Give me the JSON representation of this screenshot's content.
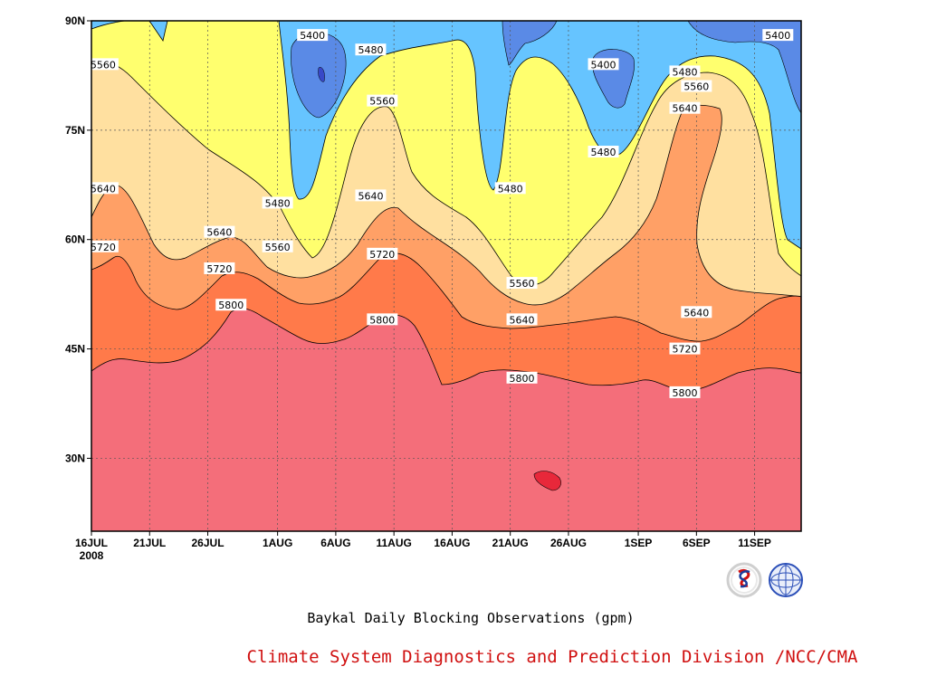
{
  "chart_data": {
    "type": "contour",
    "caption": "Baykal Daily Blocking Observations (gpm)",
    "credit": "Climate System Diagnostics and Prediction Division /NCC/CMA",
    "x_ticks": [
      "16JUL",
      "21JUL",
      "26JUL",
      "1AUG",
      "6AUG",
      "11AUG",
      "16AUG",
      "21AUG",
      "26AUG",
      "1SEP",
      "6SEP",
      "11SEP"
    ],
    "x_year": "2008",
    "x_range": [
      "16JUL2008",
      "15SEP2008"
    ],
    "y_ticks": [
      "30N",
      "45N",
      "60N",
      "75N",
      "90N"
    ],
    "y_range": [
      20,
      90
    ],
    "grid": true,
    "levels": [
      {
        "value": 5400,
        "color": "#5a8ae6"
      },
      {
        "value": 5480,
        "color": "#66c4ff"
      },
      {
        "value": 5560,
        "color": "#ffff6e"
      },
      {
        "value": 5640,
        "color": "#ffe0a0"
      },
      {
        "value": 5720,
        "color": "#ffa066"
      },
      {
        "value": 5800,
        "color": "#ff7a4a"
      },
      {
        "value": 5880,
        "color": "#f46e7a"
      }
    ],
    "above_5880_color": "#e8283a",
    "contour_labels": [
      {
        "label": "5400",
        "date": "4AUG",
        "lat": 88
      },
      {
        "label": "5480",
        "date": "9AUG",
        "lat": 86
      },
      {
        "label": "5560",
        "date": "17JUL",
        "lat": 84
      },
      {
        "label": "5400",
        "date": "29AUG",
        "lat": 84
      },
      {
        "label": "5480",
        "date": "5SEP",
        "lat": 83
      },
      {
        "label": "5400",
        "date": "13SEP",
        "lat": 88
      },
      {
        "label": "5560",
        "date": "6SEP",
        "lat": 81
      },
      {
        "label": "5560",
        "date": "10AUG",
        "lat": 79
      },
      {
        "label": "5640",
        "date": "5SEP",
        "lat": 78
      },
      {
        "label": "5480",
        "date": "29AUG",
        "lat": 72
      },
      {
        "label": "5480",
        "date": "21AUG",
        "lat": 67
      },
      {
        "label": "5480",
        "date": "1AUG",
        "lat": 65
      },
      {
        "label": "5640",
        "date": "17JUL",
        "lat": 67
      },
      {
        "label": "5640",
        "date": "9AUG",
        "lat": 66
      },
      {
        "label": "5640",
        "date": "27JUL",
        "lat": 61
      },
      {
        "label": "5560",
        "date": "1AUG",
        "lat": 59
      },
      {
        "label": "5720",
        "date": "17JUL",
        "lat": 59
      },
      {
        "label": "5720",
        "date": "10AUG",
        "lat": 58
      },
      {
        "label": "5720",
        "date": "27JUL",
        "lat": 56
      },
      {
        "label": "5560",
        "date": "22AUG",
        "lat": 54
      },
      {
        "label": "5640",
        "date": "22AUG",
        "lat": 49
      },
      {
        "label": "5640",
        "date": "6SEP",
        "lat": 50
      },
      {
        "label": "5800",
        "date": "28JUL",
        "lat": 51
      },
      {
        "label": "5800",
        "date": "10AUG",
        "lat": 49
      },
      {
        "label": "5720",
        "date": "5SEP",
        "lat": 45
      },
      {
        "label": "5800",
        "date": "22AUG",
        "lat": 41
      },
      {
        "label": "5800",
        "date": "5SEP",
        "lat": 39
      }
    ]
  }
}
